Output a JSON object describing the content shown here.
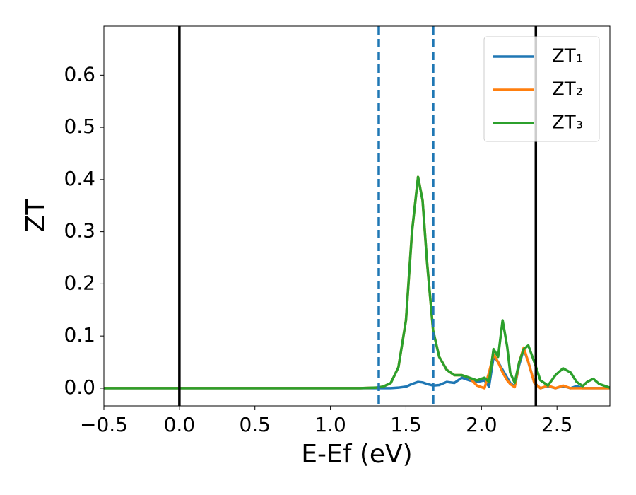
{
  "chart_data": {
    "type": "line",
    "xlabel": "E-Ef (eV)",
    "ylabel": "ZT",
    "x": [
      -0.5,
      1.2,
      1.3,
      1.35,
      1.4,
      1.45,
      1.5,
      1.54,
      1.58,
      1.61,
      1.64,
      1.68,
      1.72,
      1.77,
      1.82,
      1.87,
      1.92,
      1.97,
      2.02,
      2.05,
      2.08,
      2.11,
      2.14,
      2.17,
      2.19,
      2.22,
      2.25,
      2.28,
      2.31,
      2.35,
      2.39,
      2.44,
      2.49,
      2.54,
      2.59,
      2.63,
      2.67,
      2.7,
      2.74,
      2.78,
      2.85
    ],
    "series": [
      {
        "name": "ZT₁",
        "color": "#1f77b4",
        "values": [
          0,
          0,
          0,
          0,
          0,
          0.001,
          0.003,
          0.008,
          0.012,
          0.011,
          0.008,
          0.005,
          0.006,
          0.012,
          0.01,
          0.02,
          0.015,
          0.012,
          0.015,
          0.003,
          0.06,
          0.05,
          0.035,
          0.02,
          0.01,
          0.003,
          0.045,
          0.075,
          0.05,
          0.01,
          0,
          0.004,
          0,
          0.004,
          0,
          0.004,
          0,
          0,
          0,
          0,
          0
        ]
      },
      {
        "name": "ZT₂",
        "color": "#ff7f0e",
        "values": [
          0,
          0,
          0.001,
          0.003,
          0.01,
          0.04,
          0.13,
          0.3,
          0.405,
          0.36,
          0.24,
          0.11,
          0.06,
          0.035,
          0.025,
          0.025,
          0.02,
          0.005,
          0,
          0.03,
          0.065,
          0.05,
          0.03,
          0.015,
          0.008,
          0.002,
          0.05,
          0.078,
          0.05,
          0.01,
          0,
          0.005,
          0,
          0.005,
          0,
          0,
          0,
          0,
          0,
          0,
          0
        ]
      },
      {
        "name": "ZT₃",
        "color": "#2ca02c",
        "values": [
          0,
          0,
          0.001,
          0.003,
          0.01,
          0.04,
          0.13,
          0.3,
          0.405,
          0.36,
          0.24,
          0.11,
          0.06,
          0.035,
          0.025,
          0.025,
          0.02,
          0.015,
          0.02,
          0.012,
          0.075,
          0.06,
          0.13,
          0.08,
          0.03,
          0.01,
          0.05,
          0.075,
          0.082,
          0.05,
          0.015,
          0.005,
          0.025,
          0.038,
          0.03,
          0.012,
          0.004,
          0.012,
          0.018,
          0.008,
          0.001
        ]
      }
    ],
    "vlines": [
      {
        "x": 0,
        "color": "#000000",
        "dashed": false
      },
      {
        "x": 2.36,
        "color": "#000000",
        "dashed": false
      },
      {
        "x": 1.32,
        "color": "#1f77b4",
        "dashed": true
      },
      {
        "x": 1.68,
        "color": "#1f77b4",
        "dashed": true
      }
    ],
    "xlim": [
      -0.5,
      2.85
    ],
    "ylim": [
      -0.034,
      0.694
    ],
    "xticks": [
      {
        "value": -0.5,
        "label": "−0.5"
      },
      {
        "value": 0,
        "label": "0.0"
      },
      0.5,
      {
        "value": 1,
        "label": "1.0"
      },
      1.5,
      {
        "value": 2,
        "label": "2.0"
      },
      2.5
    ],
    "yticks": [
      {
        "value": 0,
        "label": "0.0"
      },
      0.1,
      0.2,
      0.3,
      0.4,
      0.5,
      0.6
    ],
    "grid": false,
    "legend": "upper right"
  }
}
